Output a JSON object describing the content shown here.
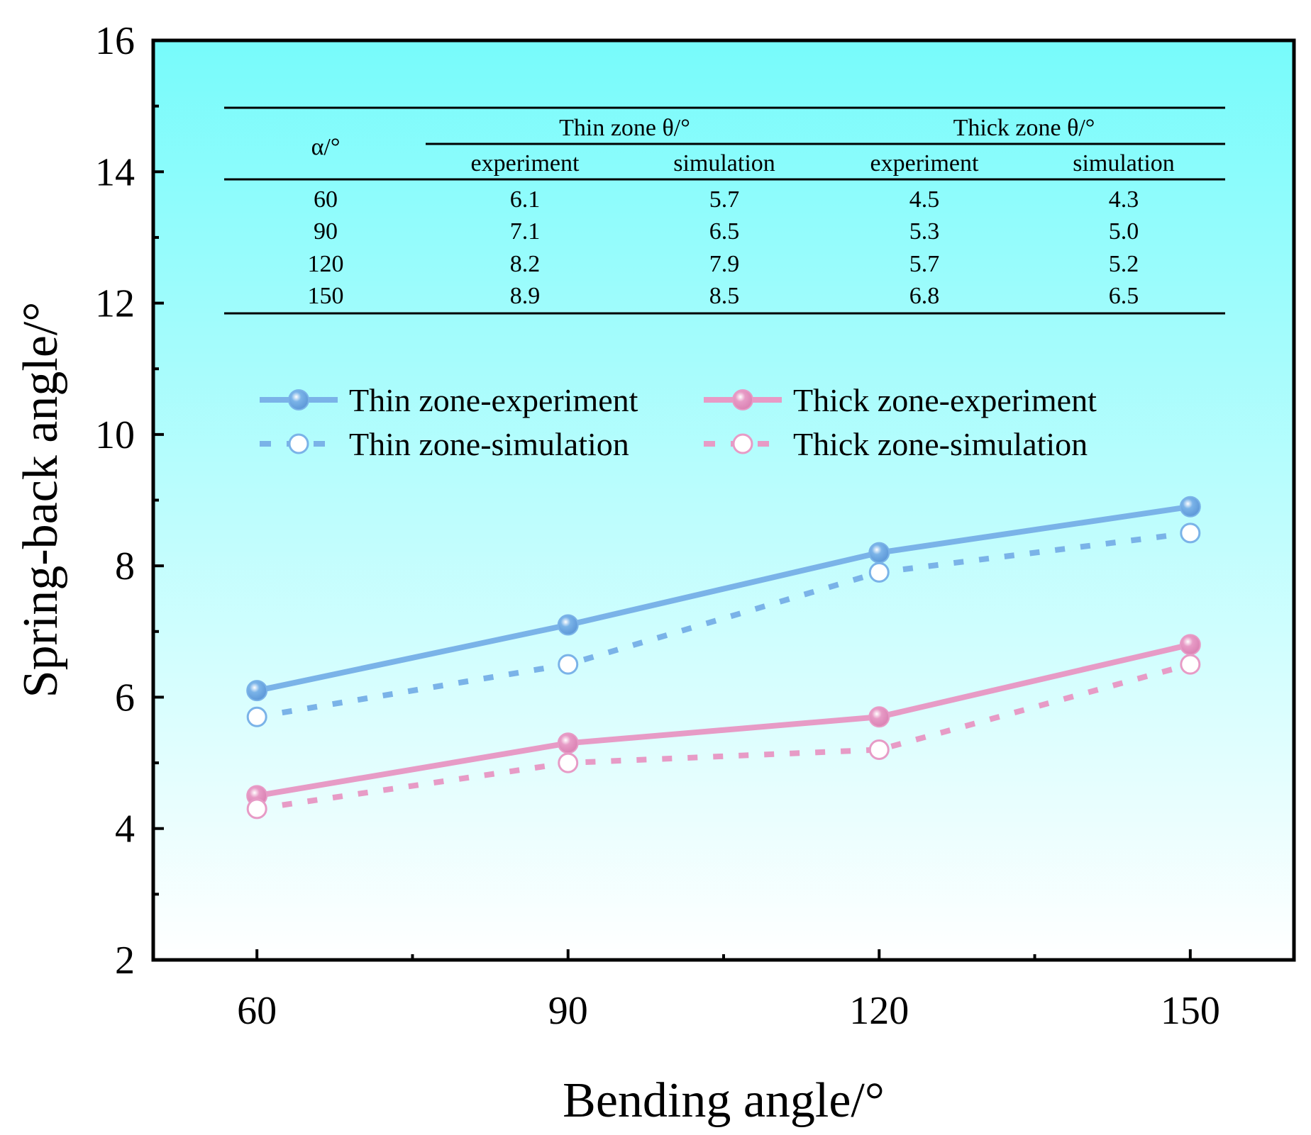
{
  "chart_data": {
    "type": "line",
    "xlabel": "Bending angle/°",
    "ylabel": "Spring-back angle/°",
    "x": [
      60,
      90,
      120,
      150
    ],
    "xlim": [
      50,
      160
    ],
    "ylim": [
      2,
      16
    ],
    "xticks": [
      "60",
      "90",
      "120",
      "150"
    ],
    "yticks": [
      "2",
      "4",
      "6",
      "8",
      "10",
      "12",
      "14",
      "16"
    ],
    "grid": false,
    "legend_position": "middle",
    "series": [
      {
        "name": "Thin zone-experiment",
        "values": [
          6.1,
          7.1,
          8.2,
          8.9
        ],
        "color": "#7ab3e8",
        "style": "solid",
        "marker": "filled"
      },
      {
        "name": "Thin zone-simulation",
        "values": [
          5.7,
          6.5,
          7.9,
          8.5
        ],
        "color": "#7ab3e8",
        "style": "dotted",
        "marker": "open"
      },
      {
        "name": "Thick zone-experiment",
        "values": [
          4.5,
          5.3,
          5.7,
          6.8
        ],
        "color": "#e79bc6",
        "style": "solid",
        "marker": "filled"
      },
      {
        "name": "Thick zone-simulation",
        "values": [
          4.3,
          5.0,
          5.2,
          6.5
        ],
        "color": "#e79bc6",
        "style": "dotted",
        "marker": "open"
      }
    ],
    "inset_table": {
      "corner_header": "α/°",
      "group_headers": [
        "Thin zone θ/°",
        "Thick zone θ/°"
      ],
      "sub_headers": [
        "experiment",
        "simulation",
        "experiment",
        "simulation"
      ],
      "rows": [
        [
          "60",
          "6.1",
          "5.7",
          "4.5",
          "4.3"
        ],
        [
          "90",
          "7.1",
          "6.5",
          "5.3",
          "5.0"
        ],
        [
          "120",
          "8.2",
          "7.9",
          "5.7",
          "5.2"
        ],
        [
          "150",
          "8.9",
          "8.5",
          "6.8",
          "6.5"
        ]
      ]
    }
  },
  "colors": {
    "bg_top": "#77fbfb",
    "bg_bottom": "#ffffff",
    "thin": "#7ab3e8",
    "thick": "#e79bc6"
  }
}
